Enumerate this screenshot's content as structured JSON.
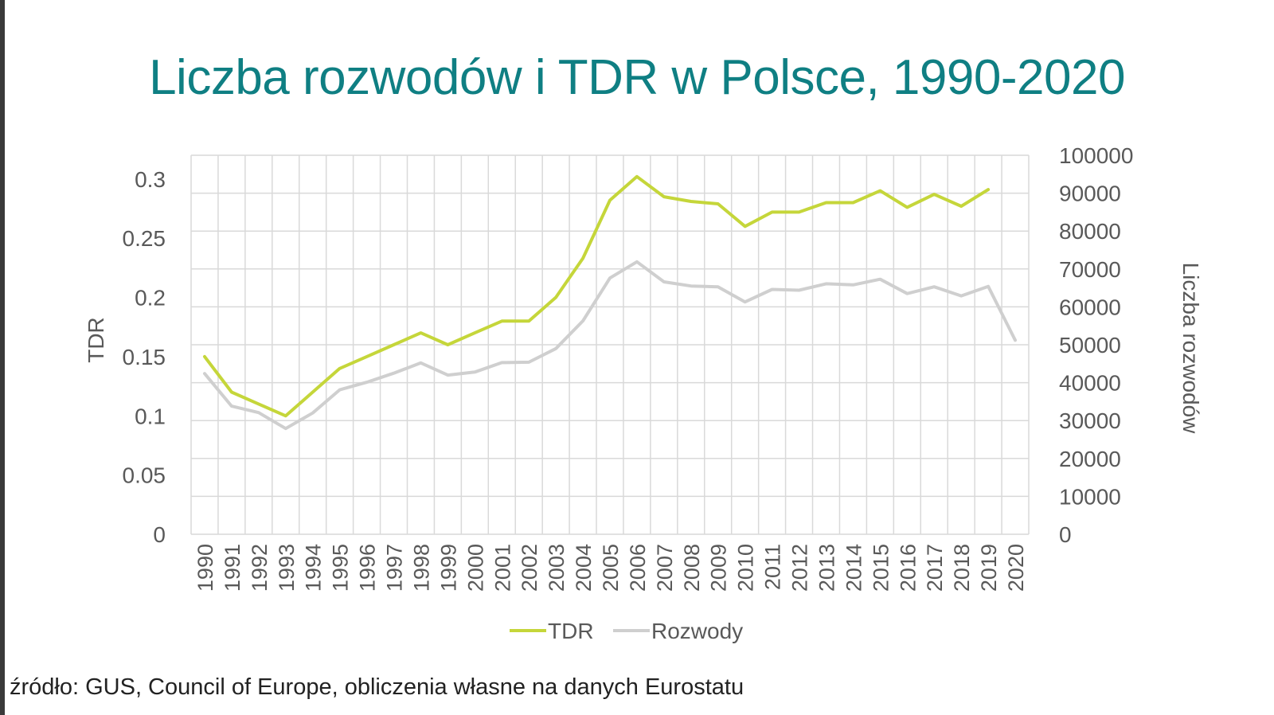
{
  "title": "Liczba rozwodów i TDR w Polsce, 1990-2020",
  "source": "źródło: GUS, Council of Europe, obliczenia własne na danych Eurostatu",
  "colors": {
    "title": "#0f7f83",
    "tdr": "#c5d63a",
    "rozwody": "#cfcfcf",
    "grid": "#d9d9d9",
    "text": "#595959"
  },
  "chart_data": {
    "type": "line",
    "x": [
      "1990",
      "1991",
      "1992",
      "1993",
      "1994",
      "1995",
      "1996",
      "1997",
      "1998",
      "1999",
      "2000",
      "2001",
      "2002",
      "2003",
      "2004",
      "2005",
      "2006",
      "2007",
      "2008",
      "2009",
      "2010",
      "2011",
      "2012",
      "2013",
      "2014",
      "2015",
      "2016",
      "2017",
      "2018",
      "2019",
      "2020"
    ],
    "left_axis": {
      "label": "TDR",
      "ylim": [
        0,
        0.32
      ],
      "ticks": [
        "0",
        "0.05",
        "0.1",
        "0.15",
        "0.2",
        "0.25",
        "0.3"
      ]
    },
    "right_axis": {
      "label": "Liczba rozwodów",
      "ylim": [
        0,
        100000
      ],
      "ticks": [
        "0",
        "10000",
        "20000",
        "30000",
        "40000",
        "50000",
        "60000",
        "70000",
        "80000",
        "90000",
        "100000"
      ]
    },
    "series": [
      {
        "name": "TDR",
        "axis": "left",
        "values": [
          0.15,
          0.12,
          0.11,
          0.1,
          0.12,
          0.14,
          0.15,
          0.16,
          0.17,
          0.16,
          0.17,
          0.18,
          0.18,
          0.2,
          0.233,
          0.282,
          0.302,
          0.285,
          0.281,
          0.279,
          0.26,
          0.272,
          0.272,
          0.28,
          0.28,
          0.29,
          0.276,
          0.287,
          0.277,
          0.291,
          null
        ]
      },
      {
        "name": "Rozwody",
        "axis": "right",
        "values": [
          42400,
          33800,
          32100,
          27900,
          32000,
          38100,
          40100,
          42500,
          45200,
          42000,
          42800,
          45300,
          45400,
          49000,
          56300,
          67600,
          71900,
          66600,
          65500,
          65300,
          61300,
          64600,
          64400,
          66100,
          65800,
          67300,
          63500,
          65300,
          62900,
          65400,
          51200
        ]
      }
    ],
    "legend": [
      "TDR",
      "Rozwody"
    ],
    "legend_position": "bottom",
    "grid": true
  }
}
